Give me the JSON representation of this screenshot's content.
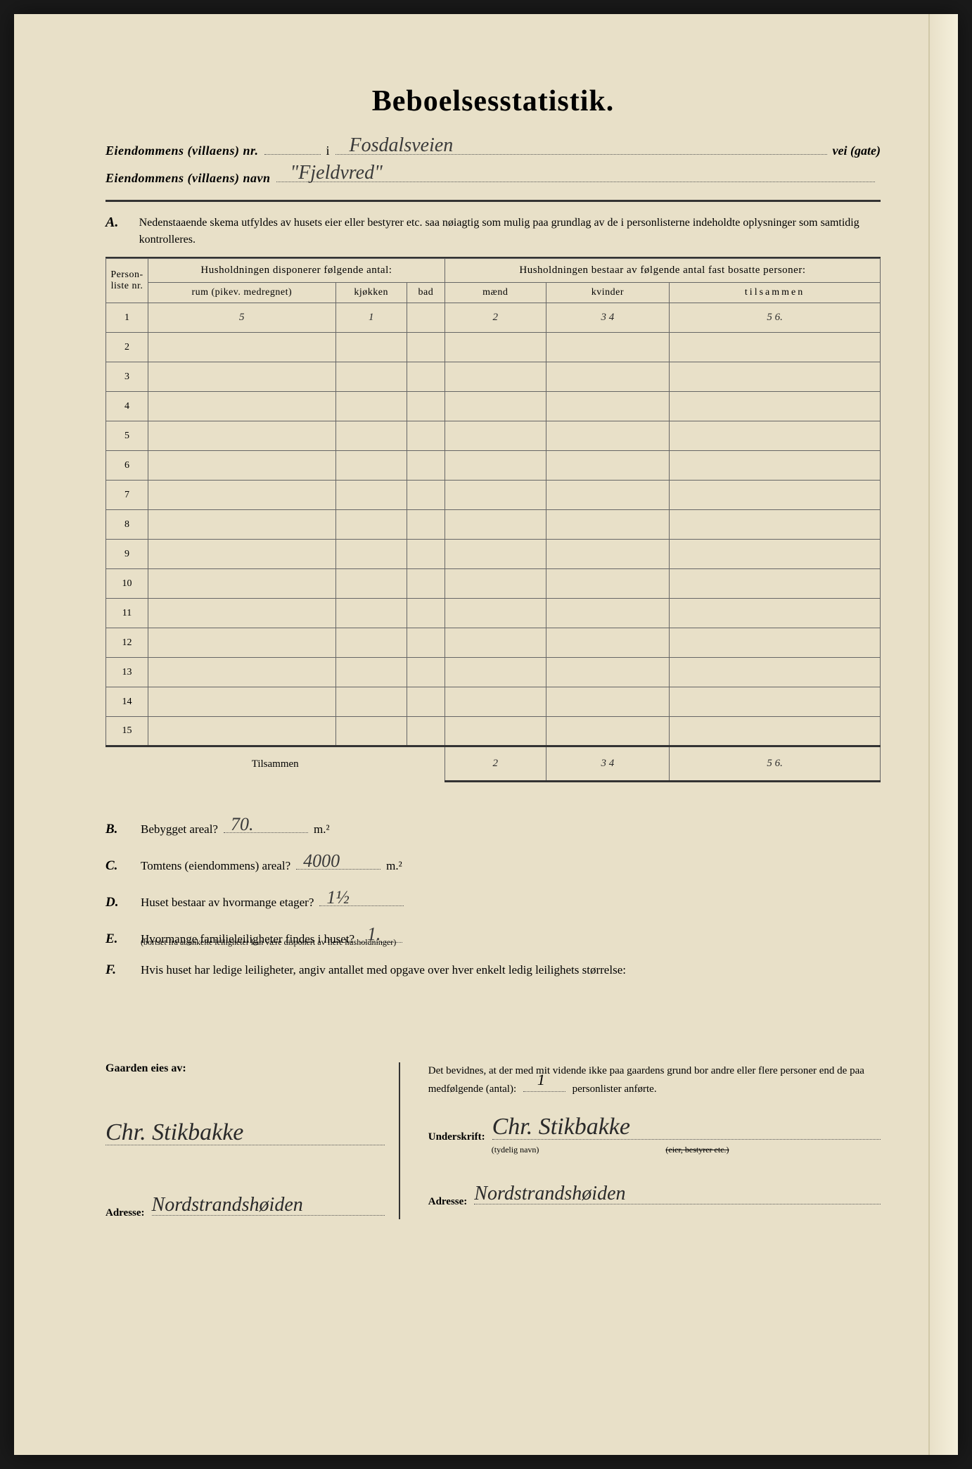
{
  "title": "Beboelsesstatistik.",
  "header": {
    "line1_label": "Eiendommens (villaens) nr.",
    "line1_mid": "i",
    "line1_value": "Fosdalsveien",
    "line1_suffix": "vei (gate)",
    "line2_label": "Eiendommens (villaens) navn",
    "line2_value": "\"Fjeldvred\""
  },
  "sectionA": {
    "letter": "A.",
    "text": "Nedenstaaende skema utfyldes av husets eier eller bestyrer etc. saa nøiagtig som mulig paa grundlag av de i personlisterne indeholdte oplysninger som samtidig kontrolleres."
  },
  "table": {
    "col_personliste": "Person-liste nr.",
    "group1": "Husholdningen disponerer følgende antal:",
    "col_rum": "rum (pikev. medregnet)",
    "col_kjokken": "kjøkken",
    "col_bad": "bad",
    "group2": "Husholdningen bestaar av følgende antal fast bosatte personer:",
    "col_maend": "mænd",
    "col_kvinder": "kvinder",
    "col_tilsammen": "tilsammen",
    "rows": [
      {
        "n": "1",
        "rum": "5",
        "kjokken": "1",
        "bad": "",
        "maend": "2",
        "kvinder": "3 4",
        "tilsammen": "5 6."
      },
      {
        "n": "2"
      },
      {
        "n": "3"
      },
      {
        "n": "4"
      },
      {
        "n": "5"
      },
      {
        "n": "6"
      },
      {
        "n": "7"
      },
      {
        "n": "8"
      },
      {
        "n": "9"
      },
      {
        "n": "10"
      },
      {
        "n": "11"
      },
      {
        "n": "12"
      },
      {
        "n": "13"
      },
      {
        "n": "14"
      },
      {
        "n": "15"
      }
    ],
    "total_label": "Tilsammen",
    "total": {
      "maend": "2",
      "kvinder": "3 4",
      "tilsammen": "5 6."
    }
  },
  "questions": {
    "B": {
      "letter": "B.",
      "text": "Bebygget areal?",
      "value": "70.",
      "unit": "m.²"
    },
    "C": {
      "letter": "C.",
      "text": "Tomtens (eiendommens) areal?",
      "value": "4000",
      "unit": "m.²"
    },
    "D": {
      "letter": "D.",
      "text": "Huset bestaar av hvormange etager?",
      "value": "1½"
    },
    "E": {
      "letter": "E.",
      "text": "Hvormange familieleiligheter findes i huset?",
      "value": "1.",
      "subtext": "(bortset fra at enkelte leiligheter kan være disponert av flere husholdninger)"
    },
    "F": {
      "letter": "F.",
      "text": "Hvis huset har ledige leiligheter, angiv antallet med opgave over hver enkelt ledig leilighets størrelse:"
    }
  },
  "footer": {
    "left_heading": "Gaarden eies av:",
    "left_sig": "Chr. Stikbakke",
    "left_addr_label": "Adresse:",
    "left_addr": "Nordstrandshøiden",
    "right_text_1": "Det bevidnes, at der med mit vidende ikke paa gaardens grund bor andre eller flere personer end de paa medfølgende (antal):",
    "right_count": "1",
    "right_text_2": "personlister anførte.",
    "right_sig_label": "Underskrift:",
    "right_sig": "Chr. Stikbakke",
    "right_sig_sub": "(tydelig navn)",
    "right_sig_sub2": "(eier, bestyrer etc.)",
    "right_addr_label": "Adresse:",
    "right_addr": "Nordstrandshøiden"
  },
  "colors": {
    "paper": "#e8e0c8",
    "ink": "#2a2a2a",
    "border": "#333"
  }
}
